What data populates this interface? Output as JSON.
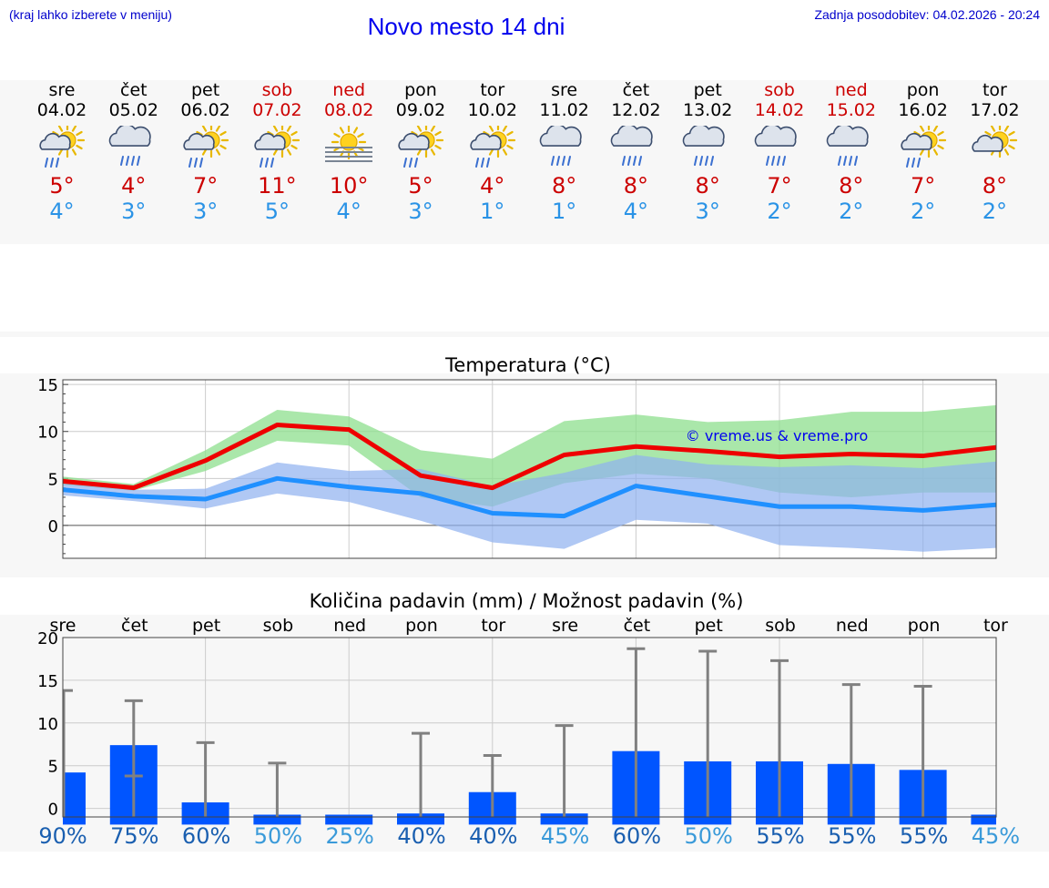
{
  "header": {
    "hint": "(kraj lahko izberete v meniju)",
    "title": "Novo mesto 14 dni",
    "updated": "Zadnja posodobitev: 04.02.2026 - 20:24"
  },
  "colors": {
    "weekend": "#cc0000",
    "max_line": "#ee0000",
    "min_line": "#2090ff",
    "max_band": "#8ddf8d",
    "min_band": "#8fb0f0",
    "bar": "#0055ff",
    "whisker": "#808080"
  },
  "days": [
    {
      "name": "sre",
      "date": "04.02",
      "weekend": false,
      "icon": "sun-cloud-rain-icon",
      "tmax": "5°",
      "tmin": "4°"
    },
    {
      "name": "čet",
      "date": "05.02",
      "weekend": false,
      "icon": "cloud-rain-icon",
      "tmax": "4°",
      "tmin": "3°"
    },
    {
      "name": "pet",
      "date": "06.02",
      "weekend": false,
      "icon": "sun-cloud-rain-icon",
      "tmax": "7°",
      "tmin": "3°"
    },
    {
      "name": "sob",
      "date": "07.02",
      "weekend": true,
      "icon": "sun-cloud-rain-icon",
      "tmax": "11°",
      "tmin": "5°"
    },
    {
      "name": "ned",
      "date": "08.02",
      "weekend": true,
      "icon": "sun-fog-icon",
      "tmax": "10°",
      "tmin": "4°"
    },
    {
      "name": "pon",
      "date": "09.02",
      "weekend": false,
      "icon": "sun-cloud-rain-icon",
      "tmax": "5°",
      "tmin": "3°"
    },
    {
      "name": "tor",
      "date": "10.02",
      "weekend": false,
      "icon": "sun-cloud-rain-icon",
      "tmax": "4°",
      "tmin": "1°"
    },
    {
      "name": "sre",
      "date": "11.02",
      "weekend": false,
      "icon": "cloud-rain-icon",
      "tmax": "8°",
      "tmin": "1°"
    },
    {
      "name": "čet",
      "date": "12.02",
      "weekend": false,
      "icon": "cloud-rain-icon",
      "tmax": "8°",
      "tmin": "4°"
    },
    {
      "name": "pet",
      "date": "13.02",
      "weekend": false,
      "icon": "cloud-rain-icon",
      "tmax": "8°",
      "tmin": "3°"
    },
    {
      "name": "sob",
      "date": "14.02",
      "weekend": true,
      "icon": "cloud-rain-icon",
      "tmax": "7°",
      "tmin": "2°"
    },
    {
      "name": "ned",
      "date": "15.02",
      "weekend": true,
      "icon": "cloud-rain-icon",
      "tmax": "8°",
      "tmin": "2°"
    },
    {
      "name": "pon",
      "date": "16.02",
      "weekend": false,
      "icon": "sun-cloud-rain-icon",
      "tmax": "7°",
      "tmin": "2°"
    },
    {
      "name": "tor",
      "date": "17.02",
      "weekend": false,
      "icon": "sun-cloud-icon",
      "tmax": "8°",
      "tmin": "2°"
    }
  ],
  "chart_data": [
    {
      "type": "line",
      "title": "Temperatura (°C)",
      "watermark": "© vreme.us & vreme.pro",
      "x": [
        0,
        1,
        2,
        3,
        4,
        5,
        6,
        7,
        8,
        9,
        10,
        11,
        12,
        13
      ],
      "ylim": [
        -3.5,
        15.5
      ],
      "yticks": [
        0,
        5,
        10,
        15
      ],
      "grid": true,
      "series": [
        {
          "name": "max",
          "values": [
            4.7,
            4.0,
            6.9,
            10.7,
            10.2,
            5.3,
            4.0,
            7.5,
            8.4,
            7.9,
            7.3,
            7.6,
            7.4,
            8.3
          ],
          "band_low": [
            4.3,
            3.7,
            5.8,
            9.0,
            8.5,
            3.0,
            2.0,
            4.5,
            5.5,
            5.0,
            3.5,
            3.0,
            3.5,
            3.5
          ],
          "band_high": [
            5.2,
            4.4,
            8.0,
            12.3,
            11.6,
            8.0,
            7.1,
            11.1,
            11.8,
            11.0,
            11.2,
            12.1,
            12.1,
            12.8
          ]
        },
        {
          "name": "min",
          "values": [
            3.8,
            3.1,
            2.8,
            5.0,
            4.1,
            3.4,
            1.3,
            1.0,
            4.2,
            3.1,
            2.0,
            2.0,
            1.6,
            2.2
          ],
          "band_low": [
            3.2,
            2.6,
            1.8,
            3.4,
            2.5,
            0.5,
            -1.8,
            -2.5,
            0.6,
            0.2,
            -2.1,
            -2.4,
            -2.8,
            -2.4
          ],
          "band_high": [
            4.5,
            3.8,
            3.9,
            6.7,
            5.8,
            6.0,
            4.2,
            5.6,
            7.5,
            6.5,
            6.2,
            6.4,
            6.1,
            6.8
          ]
        }
      ]
    },
    {
      "type": "bar",
      "title": "Količina padavin (mm) / Možnost padavin (%)",
      "categories": [
        "sre",
        "čet",
        "pet",
        "sob",
        "ned",
        "pon",
        "tor",
        "sre",
        "čet",
        "pet",
        "sob",
        "ned",
        "pon",
        "tor"
      ],
      "values": [
        5.1,
        8.3,
        1.6,
        0.1,
        0.0,
        0.3,
        2.8,
        0.3,
        7.6,
        6.4,
        6.4,
        6.1,
        5.4,
        0.0
      ],
      "whisker_low": [
        0,
        3.8,
        0,
        0,
        0,
        0,
        0,
        0,
        0,
        0,
        0,
        0,
        0,
        0
      ],
      "whisker_high": [
        13.8,
        12.6,
        7.7,
        5.3,
        0.0,
        8.8,
        6.2,
        9.7,
        18.7,
        18.4,
        17.3,
        14.5,
        14.3,
        0.0
      ],
      "ylim": [
        -1,
        20
      ],
      "yticks": [
        0,
        5,
        10,
        15,
        20
      ],
      "probability": [
        "90%",
        "75%",
        "60%",
        "50%",
        "25%",
        "40%",
        "40%",
        "45%",
        "60%",
        "50%",
        "55%",
        "55%",
        "55%",
        "45%"
      ],
      "probability_tone": [
        "dark",
        "dark",
        "dark",
        "light",
        "light",
        "dark",
        "dark",
        "light",
        "dark",
        "light",
        "dark",
        "dark",
        "dark",
        "light"
      ]
    }
  ]
}
